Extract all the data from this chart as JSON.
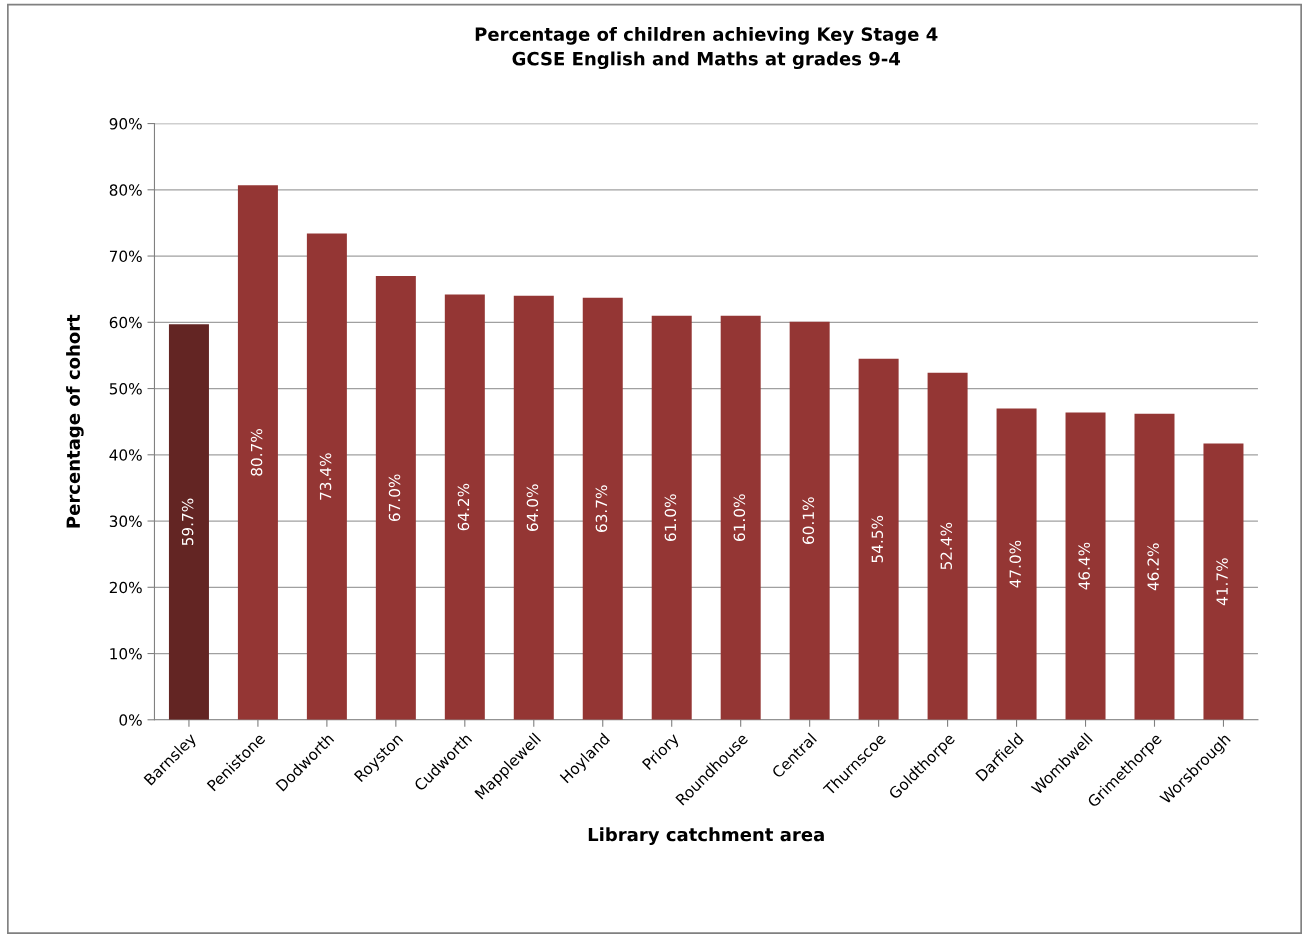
{
  "chart_data": {
    "type": "bar",
    "title": "Percentage of children achieving Key Stage 4\nGCSE English and Maths at grades 9-4",
    "xlabel": "Library catchment area",
    "ylabel": "Percentage of cohort",
    "categories": [
      "Barnsley",
      "Penistone",
      "Dodworth",
      "Royston",
      "Cudworth",
      "Mapplewell",
      "Hoyland",
      "Priory",
      "Roundhouse",
      "Central",
      "Thurnscoe",
      "Goldthorpe",
      "Darfield",
      "Wombwell",
      "Grimethorpe",
      "Worsbrough"
    ],
    "values": [
      59.7,
      80.7,
      73.4,
      67.0,
      64.2,
      64.0,
      63.7,
      61.0,
      61.0,
      60.1,
      54.5,
      52.4,
      47.0,
      46.4,
      46.2,
      41.7
    ],
    "value_labels": [
      "59.7%",
      "80.7%",
      "73.4%",
      "67.0%",
      "64.2%",
      "64.0%",
      "63.7%",
      "61.0%",
      "61.0%",
      "60.1%",
      "54.5%",
      "52.4%",
      "47.0%",
      "46.4%",
      "46.2%",
      "41.7%"
    ],
    "colors": [
      "#632523",
      "#943634",
      "#943634",
      "#943634",
      "#943634",
      "#943634",
      "#943634",
      "#943634",
      "#943634",
      "#943634",
      "#943634",
      "#943634",
      "#943634",
      "#943634",
      "#943634",
      "#943634"
    ],
    "ylim": [
      0,
      90
    ],
    "yticks": [
      {
        "value": 0,
        "label": "0%"
      },
      {
        "value": 10,
        "label": "10%"
      },
      {
        "value": 20,
        "label": "20%"
      },
      {
        "value": 30,
        "label": "30%"
      },
      {
        "value": 40,
        "label": "40%"
      },
      {
        "value": 50,
        "label": "50%"
      },
      {
        "value": 60,
        "label": "60%"
      },
      {
        "value": 70,
        "label": "70%"
      },
      {
        "value": 80,
        "label": "80%"
      },
      {
        "value": 90,
        "label": "90%"
      }
    ],
    "grid": "y",
    "legend": false
  }
}
